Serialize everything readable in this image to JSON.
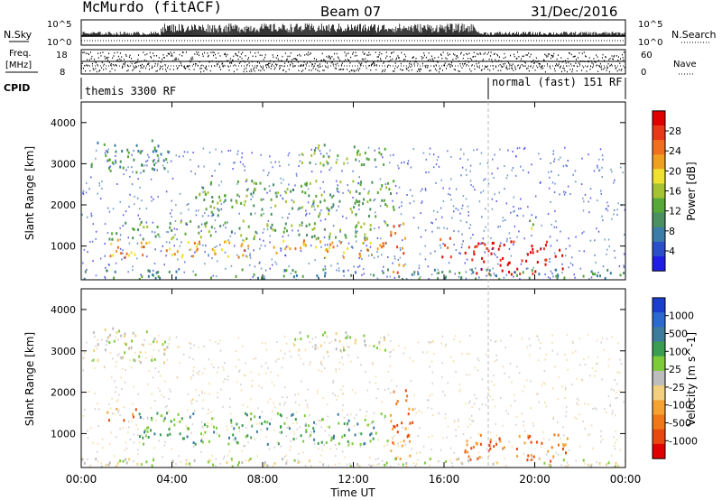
{
  "header": {
    "station": "McMurdo (fitACF)",
    "beam": "Beam 07",
    "date": "31/Dec/2016"
  },
  "top_panels": {
    "nsky_label": "N.Sky",
    "nsearch_label": "N.Search",
    "noise_top_tick": "10^5",
    "noise_bottom_tick": "10^0",
    "freq_label_1": "Freq.",
    "freq_label_2": "[MHz]",
    "freq_ticks": [
      "18",
      "8"
    ],
    "nave_label": "Nave",
    "nave_ticks": [
      "60",
      "0"
    ],
    "cpid_label": "CPID",
    "cpid_segments": [
      "themis 3300 RF",
      "normal (fast) 151 RF"
    ],
    "cpid_change_time": "18:00"
  },
  "chart_data": [
    {
      "type": "heatmap",
      "title": "",
      "ylabel": "Slant Range [km]",
      "yticks": [
        "1000",
        "2000",
        "3000",
        "4000"
      ],
      "ylim": [
        180,
        4500
      ],
      "xlim": [
        "00:00",
        "24:00"
      ],
      "colorbar": {
        "label": "Power [dB]",
        "ticks": [
          "4",
          "8",
          "12",
          "16",
          "20",
          "24",
          "28"
        ],
        "range": [
          0,
          30
        ],
        "colors": [
          "#1e1ee6",
          "#2a4fc8",
          "#3b7ca8",
          "#4a9060",
          "#56a838",
          "#a4c232",
          "#f0e030",
          "#f0a020",
          "#f07020",
          "#e83818",
          "#e00000"
        ]
      },
      "regions": [
        {
          "t": [
            0.4,
            3.8
          ],
          "r": [
            2700,
            3550
          ],
          "level": 3
        },
        {
          "t": [
            9.2,
            13.4
          ],
          "r": [
            2950,
            3450
          ],
          "level": 4
        },
        {
          "t": [
            1.2,
            13.5
          ],
          "r": [
            700,
            1150
          ],
          "level": 7
        },
        {
          "t": [
            1.2,
            13.5
          ],
          "r": [
            1150,
            1600
          ],
          "level": 4
        },
        {
          "t": [
            5.0,
            14.0
          ],
          "r": [
            1700,
            2600
          ],
          "level": 4
        },
        {
          "t": [
            13.6,
            14.3
          ],
          "r": [
            300,
            1600
          ],
          "level": 8
        },
        {
          "t": [
            15.8,
            16.3
          ],
          "r": [
            700,
            1400
          ],
          "level": 9
        },
        {
          "t": [
            16.8,
            21.2
          ],
          "r": [
            300,
            1100
          ],
          "level": 10
        },
        {
          "t": [
            0.0,
            24.0
          ],
          "r": [
            180,
            420
          ],
          "level": 3
        },
        {
          "t": [
            19.6,
            20.2
          ],
          "r": [
            1400,
            1700
          ],
          "level": 5
        }
      ]
    },
    {
      "type": "heatmap",
      "title": "",
      "ylabel": "Slant Range [km]",
      "yticks": [
        "1000",
        "2000",
        "3000",
        "4000"
      ],
      "ylim": [
        180,
        4500
      ],
      "xlim": [
        "00:00",
        "24:00"
      ],
      "xticks": [
        "00:00",
        "04:00",
        "08:00",
        "12:00",
        "16:00",
        "20:00",
        "00:00"
      ],
      "xlabel": "Time UT",
      "colorbar": {
        "label": "Velocity [m s^-1]",
        "ticks": [
          "1000",
          "500",
          "100",
          "25",
          "-25",
          "-100",
          "-500",
          "-1000"
        ],
        "colors": [
          "#1a3fcf",
          "#2d6ad0",
          "#3e7c9e",
          "#3a9d52",
          "#7ccc3a",
          "#bdbdbd",
          "#f2d080",
          "#f6a232",
          "#f07818",
          "#e84810",
          "#e00000"
        ]
      },
      "regions": [
        {
          "t": [
            0.4,
            3.8
          ],
          "r": [
            2700,
            3550
          ],
          "level": 5
        },
        {
          "t": [
            2.5,
            13.5
          ],
          "r": [
            700,
            1500
          ],
          "level": 3
        },
        {
          "t": [
            1.0,
            2.4
          ],
          "r": [
            1300,
            1600
          ],
          "level": 8
        },
        {
          "t": [
            13.6,
            14.6
          ],
          "r": [
            300,
            2200
          ],
          "level": 8
        },
        {
          "t": [
            16.8,
            21.5
          ],
          "r": [
            300,
            1000
          ],
          "level": 8
        },
        {
          "t": [
            0.0,
            24.0
          ],
          "r": [
            180,
            380
          ],
          "level": 5
        },
        {
          "t": [
            9.2,
            13.4
          ],
          "r": [
            2950,
            3450
          ],
          "level": 5
        }
      ]
    }
  ]
}
